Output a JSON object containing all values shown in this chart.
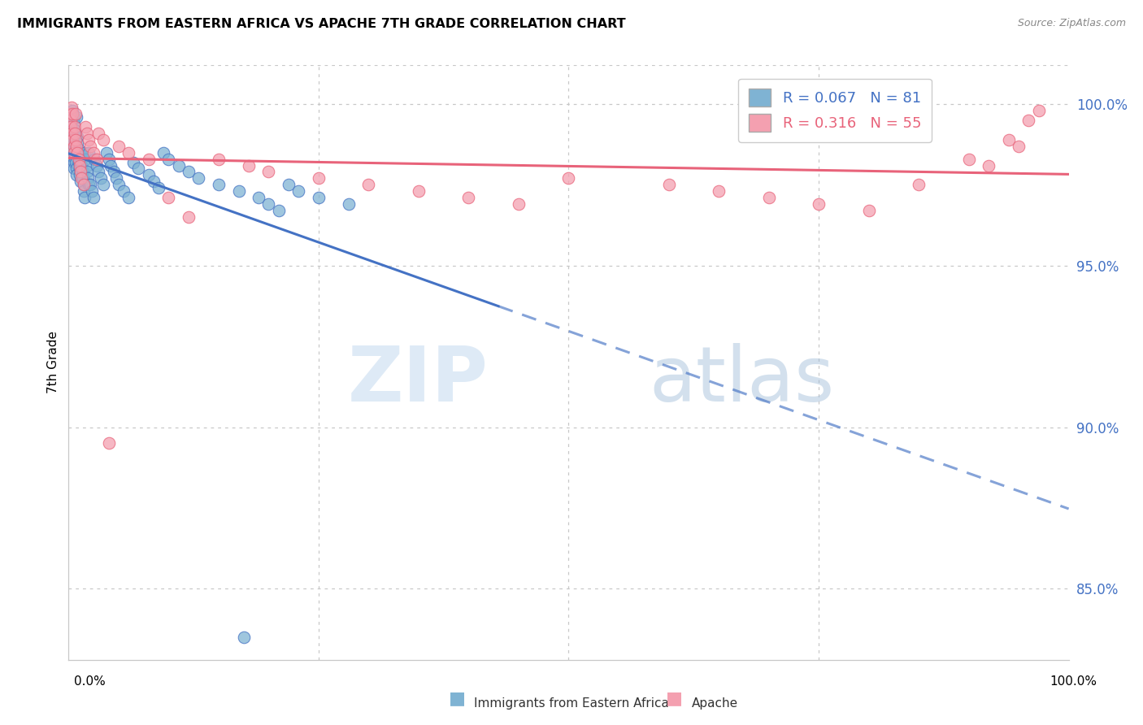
{
  "title": "IMMIGRANTS FROM EASTERN AFRICA VS APACHE 7TH GRADE CORRELATION CHART",
  "source": "Source: ZipAtlas.com",
  "ylabel": "7th Grade",
  "xlim": [
    0.0,
    1.0
  ],
  "ylim": [
    0.828,
    1.012
  ],
  "yticks": [
    0.85,
    0.9,
    0.95,
    1.0
  ],
  "ytick_labels": [
    "85.0%",
    "90.0%",
    "95.0%",
    "100.0%"
  ],
  "blue_R": 0.067,
  "blue_N": 81,
  "pink_R": 0.316,
  "pink_N": 55,
  "blue_color": "#7FB3D3",
  "pink_color": "#F4A0B0",
  "blue_line_color": "#4472C4",
  "pink_line_color": "#E8637A",
  "watermark_zip": "ZIP",
  "watermark_atlas": "atlas",
  "legend_label_blue": "Immigrants from Eastern Africa",
  "legend_label_pink": "Apache",
  "blue_x": [
    0.001,
    0.002,
    0.002,
    0.003,
    0.003,
    0.003,
    0.004,
    0.004,
    0.004,
    0.005,
    0.005,
    0.005,
    0.005,
    0.006,
    0.006,
    0.006,
    0.007,
    0.007,
    0.007,
    0.008,
    0.008,
    0.008,
    0.009,
    0.009,
    0.01,
    0.01,
    0.01,
    0.011,
    0.011,
    0.012,
    0.012,
    0.013,
    0.013,
    0.014,
    0.014,
    0.015,
    0.015,
    0.016,
    0.016,
    0.017,
    0.018,
    0.018,
    0.019,
    0.02,
    0.02,
    0.022,
    0.023,
    0.025,
    0.026,
    0.028,
    0.03,
    0.032,
    0.035,
    0.038,
    0.04,
    0.042,
    0.045,
    0.048,
    0.05,
    0.055,
    0.06,
    0.065,
    0.07,
    0.08,
    0.085,
    0.09,
    0.095,
    0.1,
    0.11,
    0.12,
    0.13,
    0.15,
    0.17,
    0.19,
    0.2,
    0.21,
    0.22,
    0.23,
    0.25,
    0.28,
    0.175
  ],
  "blue_y": [
    0.997,
    0.995,
    0.993,
    0.992,
    0.99,
    0.988,
    0.986,
    0.984,
    0.998,
    0.982,
    0.98,
    0.996,
    0.994,
    0.992,
    0.99,
    0.988,
    0.986,
    0.984,
    0.982,
    0.98,
    0.978,
    0.996,
    0.99,
    0.988,
    0.986,
    0.984,
    0.982,
    0.98,
    0.978,
    0.976,
    0.985,
    0.983,
    0.981,
    0.979,
    0.977,
    0.975,
    0.973,
    0.971,
    0.985,
    0.983,
    0.981,
    0.979,
    0.977,
    0.975,
    0.985,
    0.975,
    0.973,
    0.971,
    0.983,
    0.981,
    0.979,
    0.977,
    0.975,
    0.985,
    0.983,
    0.981,
    0.979,
    0.977,
    0.975,
    0.973,
    0.971,
    0.982,
    0.98,
    0.978,
    0.976,
    0.974,
    0.985,
    0.983,
    0.981,
    0.979,
    0.977,
    0.975,
    0.973,
    0.971,
    0.969,
    0.967,
    0.975,
    0.973,
    0.971,
    0.969,
    0.835
  ],
  "pink_x": [
    0.001,
    0.002,
    0.002,
    0.003,
    0.003,
    0.004,
    0.004,
    0.005,
    0.005,
    0.006,
    0.006,
    0.007,
    0.007,
    0.008,
    0.009,
    0.01,
    0.011,
    0.012,
    0.013,
    0.015,
    0.017,
    0.018,
    0.02,
    0.022,
    0.025,
    0.028,
    0.03,
    0.035,
    0.04,
    0.05,
    0.06,
    0.08,
    0.1,
    0.12,
    0.15,
    0.18,
    0.2,
    0.25,
    0.3,
    0.35,
    0.4,
    0.45,
    0.5,
    0.6,
    0.65,
    0.7,
    0.75,
    0.8,
    0.85,
    0.9,
    0.92,
    0.94,
    0.95,
    0.96,
    0.97
  ],
  "pink_y": [
    0.997,
    0.995,
    0.993,
    0.991,
    0.999,
    0.989,
    0.997,
    0.987,
    0.985,
    0.993,
    0.991,
    0.989,
    0.997,
    0.987,
    0.985,
    0.983,
    0.981,
    0.979,
    0.977,
    0.975,
    0.993,
    0.991,
    0.989,
    0.987,
    0.985,
    0.983,
    0.991,
    0.989,
    0.895,
    0.987,
    0.985,
    0.983,
    0.971,
    0.965,
    0.983,
    0.981,
    0.979,
    0.977,
    0.975,
    0.973,
    0.971,
    0.969,
    0.977,
    0.975,
    0.973,
    0.971,
    0.969,
    0.967,
    0.975,
    0.983,
    0.981,
    0.989,
    0.987,
    0.995,
    0.998
  ]
}
